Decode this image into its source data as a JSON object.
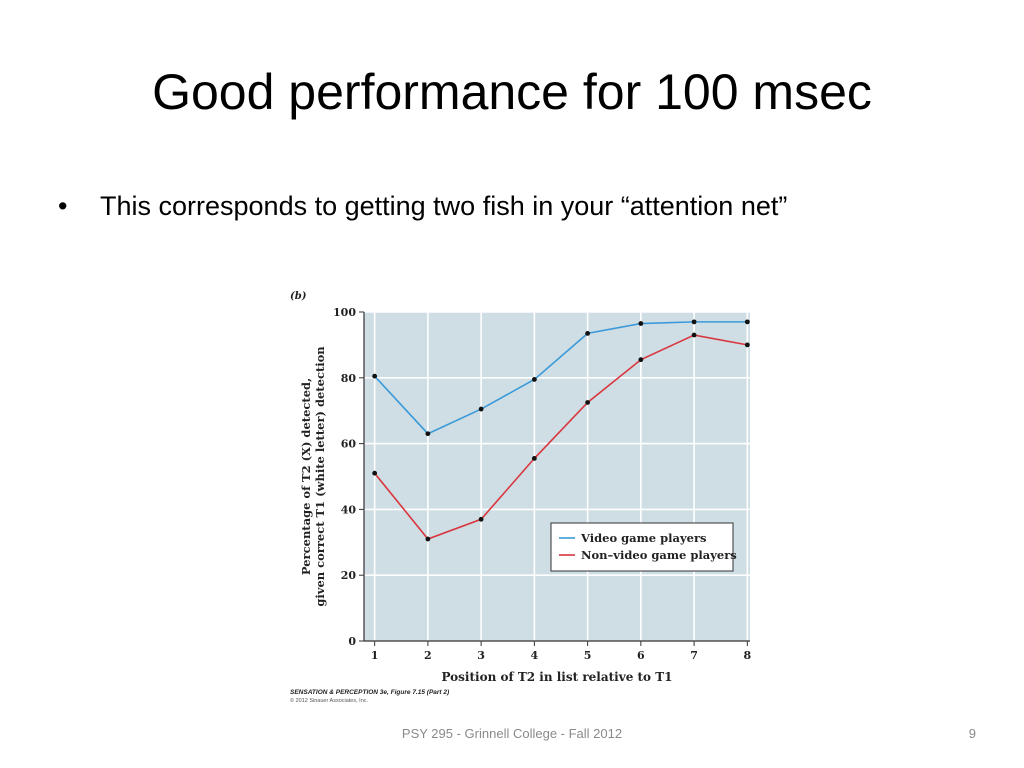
{
  "slide": {
    "title": "Good performance for 100 msec",
    "bullets": [
      "This corresponds to getting two fish in your “attention net”"
    ],
    "footer": "PSY 295 - Grinnell College - Fall 2012",
    "page_number": "9"
  },
  "figure": {
    "panel_label": "(b)",
    "credit_line1": "SENSATION & PERCEPTION 3e, Figure 7.15 (Part 2)",
    "credit_line2": "© 2012 Sinauer Associates, Inc."
  },
  "chart_data": {
    "type": "line",
    "x": [
      1,
      2,
      3,
      4,
      5,
      6,
      7,
      8
    ],
    "xlabel": "Position of T2 in list relative to T1",
    "ylabel_line1": "Percentage of T2 (X) detected,",
    "ylabel_line2": "given correct T1 (white letter) detection",
    "xlim": [
      0.8,
      8.05
    ],
    "ylim": [
      0,
      100
    ],
    "yticks": [
      0,
      20,
      40,
      60,
      80,
      100
    ],
    "xticks": [
      1,
      2,
      3,
      4,
      5,
      6,
      7,
      8
    ],
    "grid": true,
    "legend_position": "lower-right",
    "series": [
      {
        "name": "Video game players",
        "color": "#3a9ad9",
        "values": [
          80.5,
          63,
          70.5,
          79.5,
          93.5,
          96.5,
          97,
          97
        ]
      },
      {
        "name": "Non–video game players",
        "color": "#d9363e",
        "values": [
          51,
          31,
          37,
          55.5,
          72.5,
          85.5,
          93,
          90
        ]
      }
    ]
  }
}
